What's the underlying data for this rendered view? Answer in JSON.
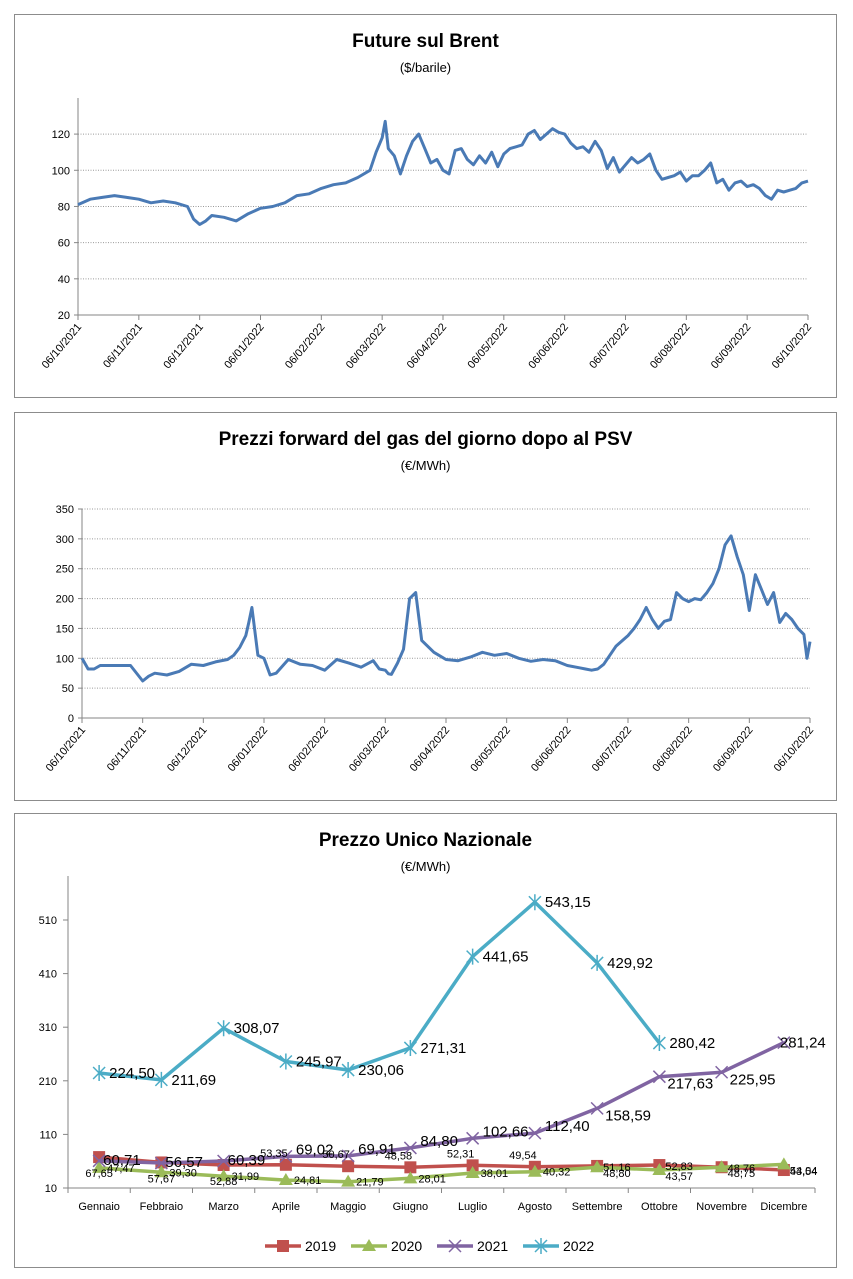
{
  "chart_data": [
    {
      "type": "line",
      "title": "Future sul Brent",
      "subtitle": "($/barile)",
      "xlabel": "",
      "ylabel": "",
      "ylim": [
        20,
        130
      ],
      "yticks": [
        20,
        40,
        60,
        80,
        100,
        120
      ],
      "grid": true,
      "xticks": [
        "06/10/2021",
        "06/11/2021",
        "06/12/2021",
        "06/01/2022",
        "06/02/2022",
        "06/03/2022",
        "06/04/2022",
        "06/05/2022",
        "06/06/2022",
        "06/07/2022",
        "06/08/2022",
        "06/09/2022",
        "06/10/2022"
      ],
      "series": [
        {
          "name": "Brent",
          "color": "#4a7ab5",
          "month_index": [
            0,
            0.2,
            0.4,
            0.6,
            0.8,
            1,
            1.2,
            1.4,
            1.6,
            1.8,
            1.9,
            2,
            2.1,
            2.2,
            2.4,
            2.6,
            2.8,
            3,
            3.2,
            3.4,
            3.6,
            3.8,
            4,
            4.2,
            4.4,
            4.6,
            4.8,
            4.9,
            5,
            5.05,
            5.1,
            5.2,
            5.3,
            5.4,
            5.5,
            5.6,
            5.7,
            5.8,
            5.9,
            6,
            6.1,
            6.2,
            6.3,
            6.4,
            6.5,
            6.6,
            6.7,
            6.8,
            6.9,
            7,
            7.1,
            7.2,
            7.3,
            7.4,
            7.5,
            7.6,
            7.7,
            7.8,
            7.9,
            8,
            8.1,
            8.2,
            8.3,
            8.4,
            8.5,
            8.6,
            8.7,
            8.8,
            8.9,
            9,
            9.1,
            9.2,
            9.3,
            9.4,
            9.5,
            9.6,
            9.7,
            9.8,
            9.9,
            10,
            10.1,
            10.2,
            10.3,
            10.4,
            10.5,
            10.6,
            10.7,
            10.8,
            10.9,
            11,
            11.1,
            11.2,
            11.3,
            11.4,
            11.5,
            11.6,
            11.7,
            11.8,
            11.9,
            12
          ],
          "values": [
            81,
            84,
            85,
            86,
            85,
            84,
            82,
            83,
            82,
            80,
            73,
            70,
            72,
            75,
            74,
            72,
            76,
            79,
            80,
            82,
            86,
            87,
            90,
            92,
            93,
            96,
            100,
            110,
            118,
            127,
            112,
            108,
            98,
            108,
            116,
            120,
            112,
            104,
            106,
            100,
            98,
            111,
            112,
            106,
            103,
            108,
            104,
            110,
            102,
            109,
            112,
            113,
            114,
            120,
            122,
            117,
            120,
            123,
            121,
            120,
            115,
            112,
            113,
            110,
            116,
            111,
            101,
            107,
            99,
            103,
            107,
            104,
            106,
            109,
            100,
            95,
            96,
            97,
            99,
            94,
            97,
            97,
            100,
            104,
            93,
            95,
            89,
            93,
            94,
            91,
            92,
            90,
            86,
            84,
            89,
            88,
            89,
            90,
            93,
            94
          ]
        }
      ]
    },
    {
      "type": "line",
      "title": "Prezzi forward del gas del giorno dopo  al PSV",
      "subtitle": "(€/MWh)",
      "xlabel": "",
      "ylabel": "",
      "ylim": [
        0,
        350
      ],
      "yticks": [
        0,
        50,
        100,
        150,
        200,
        250,
        300,
        350
      ],
      "grid": true,
      "xticks": [
        "06/10/2021",
        "06/11/2021",
        "06/12/2021",
        "06/01/2022",
        "06/02/2022",
        "06/03/2022",
        "06/04/2022",
        "06/05/2022",
        "06/06/2022",
        "06/07/2022",
        "06/08/2022",
        "06/09/2022",
        "06/10/2022"
      ],
      "series": [
        {
          "name": "PSV",
          "color": "#4a7ab5",
          "month_index": [
            0,
            0.1,
            0.2,
            0.3,
            0.5,
            0.6,
            0.8,
            1,
            1.1,
            1.2,
            1.4,
            1.6,
            1.8,
            2,
            2.2,
            2.4,
            2.5,
            2.6,
            2.7,
            2.75,
            2.8,
            2.9,
            3,
            3.1,
            3.2,
            3.4,
            3.6,
            3.8,
            4,
            4.2,
            4.4,
            4.6,
            4.8,
            4.9,
            5,
            5.05,
            5.1,
            5.2,
            5.3,
            5.4,
            5.5,
            5.6,
            5.8,
            6,
            6.2,
            6.4,
            6.6,
            6.8,
            7,
            7.2,
            7.4,
            7.6,
            7.8,
            8,
            8.2,
            8.3,
            8.4,
            8.5,
            8.6,
            8.8,
            9,
            9.1,
            9.2,
            9.3,
            9.4,
            9.5,
            9.6,
            9.7,
            9.8,
            9.9,
            10,
            10.1,
            10.2,
            10.3,
            10.4,
            10.5,
            10.6,
            10.7,
            10.8,
            10.9,
            11,
            11.1,
            11.2,
            11.3,
            11.4,
            11.5,
            11.6,
            11.7,
            11.8,
            11.9,
            11.95,
            12
          ],
          "values": [
            100,
            82,
            82,
            88,
            88,
            88,
            88,
            62,
            70,
            75,
            72,
            78,
            90,
            88,
            94,
            98,
            105,
            118,
            138,
            160,
            185,
            105,
            100,
            72,
            75,
            98,
            90,
            88,
            80,
            98,
            92,
            85,
            96,
            82,
            80,
            74,
            73,
            92,
            115,
            200,
            210,
            130,
            110,
            98,
            96,
            102,
            110,
            105,
            108,
            100,
            95,
            98,
            96,
            88,
            84,
            82,
            80,
            82,
            90,
            120,
            138,
            150,
            165,
            185,
            165,
            150,
            162,
            165,
            210,
            200,
            195,
            200,
            198,
            210,
            225,
            250,
            290,
            305,
            270,
            240,
            180,
            240,
            215,
            190,
            210,
            160,
            175,
            165,
            150,
            140,
            100,
            128
          ]
        }
      ]
    },
    {
      "type": "line",
      "title": "Prezzo Unico Nazionale",
      "subtitle": "(€/MWh)",
      "xlabel": "",
      "ylabel": "",
      "ylim": [
        10,
        550
      ],
      "yticks": [
        10,
        110,
        210,
        310,
        410,
        510
      ],
      "grid": false,
      "legend": "bottom",
      "categories": [
        "Gennaio",
        "Febbraio",
        "Marzo",
        "Aprile",
        "Maggio",
        "Giugno",
        "Luglio",
        "Agosto",
        "Settembre",
        "Ottobre",
        "Novembre",
        "Dicembre"
      ],
      "series": [
        {
          "name": "2019",
          "color": "#c0504d",
          "marker": "square",
          "values": [
            67.65,
            57.67,
            52.88,
            53.35,
            50.67,
            48.58,
            52.31,
            49.54,
            51.16,
            52.83,
            48.76,
            43.54
          ],
          "labels": [
            "67,65",
            "57,67",
            "52,88",
            "53,35",
            "50,67",
            "48,58",
            "52,31",
            "49,54",
            "51,16",
            "52,83",
            "48,76",
            "43,54"
          ]
        },
        {
          "name": "2020",
          "color": "#9bbb59",
          "marker": "triangle",
          "values": [
            47.47,
            39.3,
            31.99,
            24.81,
            21.79,
            28.01,
            38.01,
            40.32,
            48.8,
            43.57,
            48.75,
            54.04
          ],
          "labels": [
            "47,47",
            "39,30",
            "31,99",
            "24,81",
            "21,79",
            "28,01",
            "38,01",
            "40,32",
            "48,80",
            "43,57",
            "48,75",
            "54,04"
          ]
        },
        {
          "name": "2021",
          "color": "#8064a2",
          "marker": "x",
          "values": [
            60.71,
            56.57,
            60.39,
            69.02,
            69.91,
            84.8,
            102.66,
            112.4,
            158.59,
            217.63,
            225.95,
            281.24
          ],
          "labels": [
            "60,71",
            "56,57",
            "60,39",
            "69,02",
            "69,91",
            "84,80",
            "102,66",
            "112,40",
            "158,59",
            "217,63",
            "225,95",
            "281,24"
          ]
        },
        {
          "name": "2022",
          "color": "#4bacc6",
          "marker": "star",
          "values": [
            224.5,
            211.69,
            308.07,
            245.97,
            230.06,
            271.31,
            441.65,
            543.15,
            429.92,
            280.42
          ],
          "labels": [
            "224,50",
            "211,69",
            "308,07",
            "245,97",
            "230,06",
            "271,31",
            "441,65",
            "543,15",
            "429,92",
            "280,42"
          ]
        }
      ]
    }
  ]
}
